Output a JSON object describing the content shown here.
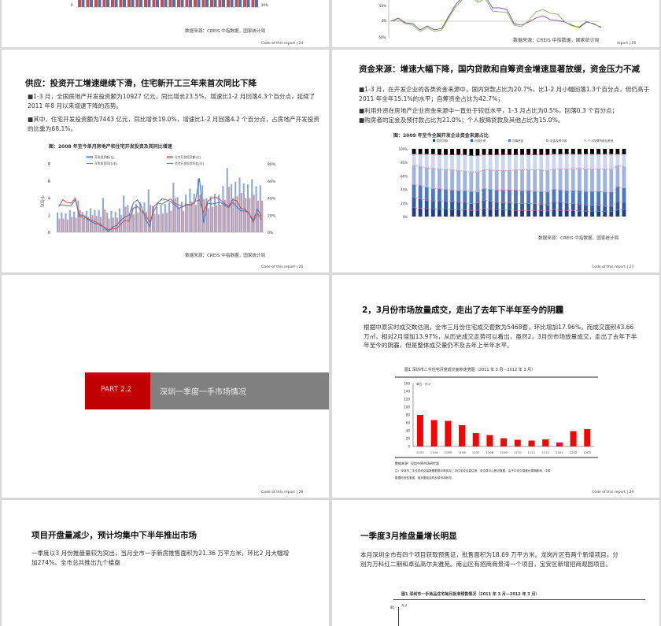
{
  "slides": [
    {
      "page": "24",
      "footer": "Code of this report  |  24",
      "source": "数据来源：CREIS 中指数据，国家统计局",
      "axis_right": "20%",
      "axis_left": "0"
    },
    {
      "page": "25",
      "footer": "report | 25",
      "source": "数据来源：CREIS 中指数据，国家统计局",
      "ticks": [
        "50%",
        "0%",
        "-50%"
      ]
    },
    {
      "page": "26",
      "title": "供应：投资开工增速继续下滑，住宅新开工三年来首次同比下降",
      "bullets": [
        "■1-3 月，全国房地产开发投资额为10927 亿元，同比增长23.5%，增速比1-2 月回落4.3个百分点，延续了2011 年8 月以来增速下降的态势。",
        "■其中，住宅开发投资额为7443 亿元，同比增长19.0%，增速比1-2 月回落4.2 个百分点，占房地产开发投资的比重为68.1%。"
      ],
      "source": "数据来源：CREIS 中指数据，国家统计局",
      "footer": "Code of this report  |  26"
    },
    {
      "page": "27",
      "title": "资金来源：增速大幅下降，国内贷款和自筹资金增速显著放缓，资金压力不减",
      "bullets": [
        "■1-3 月，在开发企业的各类资金来源中，国内贷款占比为20.7%，比1-2 月小幅回落1.3个百分点，但仍高于2011 年全年15.1%的水平；自筹资金占比为42.7%；",
        "■利用外资在房地产企业资金来源中一直处于较低水平，1-3 月占比为0.5%，回落0.3 个百分点；",
        "■购房者的定金及预付款占比为21.0%；个人按揭贷款及其他占比为15.0%。"
      ],
      "source": "数据来源：CREIS 中指数据，国家统计局",
      "footer": "Code of this report  |  27"
    },
    {
      "page": "28",
      "part": "PART 2.2",
      "section": "深圳一季度一手市场情况",
      "footer": "Code of this report  |  28",
      "colors": {
        "part": "#c00000",
        "band": "#808080"
      }
    },
    {
      "page": "29",
      "title": "2，3月份市场放量成交，走出了去年下半年至今的阴霾",
      "body": "根据中原实时成交数估测，全市三月份住宅成交套数为5468套，环比增加17.96%，而成交面积43.66万㎡，相对2月增加13.97%，从历史成交走势可以看出，虽然2，3月份市场放量成交，走出了去年下半年至今的阴霾，但是整体成交量仍不及去年上半年水平。",
      "source": "数据来源：深圳中原市场研究部",
      "note1": "注：深圳市二手住宅成交量数据根据中原实际二手住宅成交量估测，非交易中心登记数据。由于平安交易登记周期影响，中原",
      "note2": "数据时效性更强，相对更能及时反映市场状况。",
      "footer": "Code of this report  |  29"
    },
    {
      "page": "30",
      "title": "项目开盘量减少，预计均集中下半年推出市场",
      "body": "一季度以3 月份推盘量较为突出，当月全市一手新房推售面积为21.36 万平方米，环比2 月大幅增加274%。全市总共推出九个楼盘"
    },
    {
      "page": "31",
      "title": "一季度3月推盘量增长明显",
      "body": "本月深圳全市有四个项目获取预售证，批售面积为18.69 万平方米。龙岗片区有两个新增项目，分别为万科红二期和卓弘高尔夫雅苑。南山区有招商商景湾一个项目，宝安区新增招商观园项目。",
      "caption": "图1  深圳市一手商品住宅每月批准预售情况（2011 年 3 月—2012 年 3 月）",
      "ytop": "80",
      "unit": "万㎡"
    }
  ],
  "chart_data": [
    {
      "type": "bar+line",
      "title": "图：2008 年至今单月房地产和住宅开发投资及其同比增速",
      "ylabel": "千亿元",
      "ylim": [
        0,
        8
      ],
      "y2lim": [
        0,
        0.8
      ],
      "yticks": [
        "0",
        "2",
        "4",
        "6",
        "8"
      ],
      "y2ticks": [
        "0%",
        "20%",
        "40%",
        "60%",
        "80%"
      ],
      "legend": [
        "开发投资额(左)",
        "住宅开发投资额(左)",
        "开发投资同比(右)",
        "住宅开发投资同比(右)"
      ],
      "colors": [
        "#8eaadb",
        "#d99594",
        "#4472c4",
        "#c0504d"
      ],
      "series": [
        {
          "name": "开发投资额(左)",
          "values": [
            2.3,
            2.3,
            2.2,
            2.6,
            2.4,
            3.7,
            2.4,
            2.5,
            2.8,
            2.6,
            2.6,
            4.0,
            2.3,
            2.5,
            2.4,
            2.8,
            4.3,
            3.2,
            3.0,
            3.3,
            3.5,
            3.5,
            5.0,
            3.1,
            3.0,
            3.2,
            3.3,
            3.5,
            5.8,
            4.1,
            3.6,
            4.4,
            5.1,
            4.5,
            6.3,
            5.5,
            4.0,
            4.2,
            4.5,
            4.4,
            5.4,
            7.5,
            5.6,
            5.9,
            6.4,
            5.7,
            5.6,
            6.2,
            5.4,
            5.5
          ]
        },
        {
          "name": "住宅开发投资额(左)",
          "values": [
            1.6,
            1.6,
            1.5,
            1.8,
            1.7,
            2.6,
            1.7,
            1.8,
            2.0,
            1.9,
            1.8,
            2.7,
            1.6,
            1.7,
            1.7,
            2.0,
            3.0,
            2.2,
            2.1,
            2.3,
            2.4,
            2.4,
            3.2,
            2.2,
            2.1,
            2.2,
            2.3,
            2.5,
            4.0,
            2.9,
            2.5,
            3.1,
            3.6,
            3.2,
            4.4,
            3.9,
            2.8,
            3.0,
            3.2,
            3.2,
            3.8,
            5.3,
            4.0,
            4.2,
            4.6,
            4.0,
            4.0,
            4.4,
            3.7,
            3.7
          ]
        },
        {
          "name": "开发投资同比(右)",
          "values": [
            0.32,
            0.32,
            0.31,
            0.31,
            0.38,
            0.2,
            0.2,
            0.15,
            0.12,
            0.1,
            0.1,
            0.05,
            0.01,
            0.06,
            0.08,
            0.14,
            0.18,
            0.2,
            0.34,
            0.38,
            0.3,
            0.15,
            0.07,
            0.3,
            0.35,
            0.39,
            0.38,
            0.36,
            0.32,
            0.28,
            0.3,
            0.32,
            0.32,
            0.36,
            0.63,
            0.11,
            0.34,
            0.33,
            0.34,
            0.35,
            0.32,
            0.29,
            0.35,
            0.3,
            0.25,
            0.25,
            0.22,
            0.14,
            0.27,
            0.19
          ]
        },
        {
          "name": "住宅开发投资同比(右)",
          "values": [
            0.3,
            0.38,
            0.35,
            0.34,
            0.4,
            0.18,
            0.18,
            0.16,
            0.14,
            0.12,
            0.08,
            0.06,
            0.03,
            0.04,
            0.04,
            0.1,
            0.14,
            0.13,
            0.28,
            0.3,
            0.25,
            0.2,
            0.12,
            0.25,
            0.34,
            0.33,
            0.36,
            0.39,
            0.34,
            0.32,
            0.3,
            0.33,
            0.32,
            0.36,
            0.38,
            0.23,
            0.36,
            0.4,
            0.41,
            0.38,
            0.34,
            0.3,
            0.38,
            0.37,
            0.28,
            0.27,
            0.22,
            0.12,
            0.22,
            0.15
          ]
        }
      ]
    },
    {
      "type": "stacked-bar",
      "title": "图：2009 年至今全国开发企业资金来源占比",
      "ylim": [
        0,
        100
      ],
      "yticks": [
        "0%",
        "20%",
        "40%",
        "60%",
        "80%",
        "100%"
      ],
      "legend": [
        "国内贷款",
        "利用外资",
        "自筹资金",
        "定金及预付款",
        "个人按揭贷款及其他"
      ],
      "colors": [
        "#1f3c88",
        "#2e58a6",
        "#4f78c4",
        "#9fb3de",
        "#ccd6ee"
      ],
      "boundaries_pct": [
        [
          13,
          28,
          47,
          75,
          92
        ],
        [
          12,
          26,
          46,
          74,
          92
        ],
        [
          12,
          24,
          43,
          72,
          92
        ],
        [
          11,
          23,
          41,
          71,
          92
        ],
        [
          11,
          23,
          41,
          70,
          91
        ],
        [
          11,
          23,
          40,
          69,
          91
        ],
        [
          10,
          22,
          39,
          69,
          91
        ],
        [
          10,
          21,
          38,
          68,
          91
        ],
        [
          10,
          21,
          38,
          67,
          91
        ],
        [
          9,
          19,
          37,
          66,
          90
        ],
        [
          9,
          20,
          36,
          66,
          90
        ],
        [
          12,
          24,
          41,
          69,
          91
        ],
        [
          11,
          23,
          40,
          69,
          91
        ],
        [
          10,
          21,
          39,
          68,
          91
        ],
        [
          10,
          20,
          39,
          68,
          91
        ],
        [
          10,
          20,
          39,
          68,
          91
        ],
        [
          9,
          20,
          39,
          69,
          91
        ],
        [
          9,
          19,
          38,
          69,
          91
        ],
        [
          9,
          19,
          38,
          69,
          91
        ],
        [
          9,
          19,
          37,
          69,
          91
        ],
        [
          9,
          18,
          37,
          69,
          91
        ],
        [
          8,
          17,
          36,
          68,
          91
        ],
        [
          10,
          22,
          40,
          70,
          92
        ],
        [
          9,
          21,
          39,
          70,
          92
        ],
        [
          9,
          20,
          38,
          70,
          92
        ],
        [
          9,
          19,
          38,
          70,
          92
        ],
        [
          8,
          18,
          38,
          71,
          92
        ],
        [
          8,
          17,
          37,
          70,
          92
        ],
        [
          8,
          16,
          37,
          70,
          92
        ],
        [
          8,
          16,
          37,
          70,
          92
        ],
        [
          7,
          15,
          36,
          70,
          92
        ],
        [
          7,
          15,
          36,
          70,
          92
        ],
        [
          10,
          22,
          44,
          75,
          92
        ],
        [
          10,
          21,
          42,
          74,
          92
        ]
      ]
    },
    {
      "type": "bar",
      "title": "图1  深圳市二手住宅月度成交面积走势图（2011 年 3 月—2012 年 3 月）",
      "unit": "单位：万㎡",
      "ylim": [
        0,
        160
      ],
      "yticks": [
        "0",
        "20",
        "40",
        "60",
        "80",
        "100",
        "120",
        "140",
        "160"
      ],
      "categories": [
        "1103",
        "1104",
        "1105",
        "1106",
        "1107",
        "1108",
        "1109",
        "1110",
        "1111",
        "1112",
        "1201",
        "1202",
        "1203"
      ],
      "values": [
        80,
        67,
        65,
        54,
        34,
        29,
        21,
        17,
        15,
        18,
        10,
        39,
        44
      ],
      "color": "#ff0000"
    }
  ]
}
